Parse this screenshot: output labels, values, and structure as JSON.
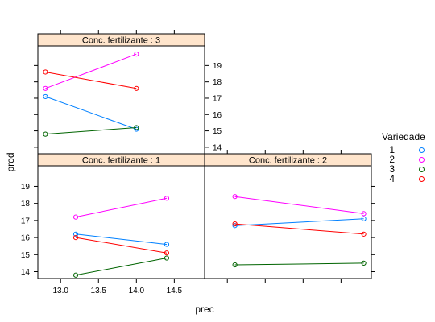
{
  "chart_data": {
    "type": "line",
    "xlabel": "prec",
    "ylabel": "prod",
    "xlim": [
      12.7,
      14.9
    ],
    "ylim": [
      13.6,
      20.2
    ],
    "x_ticks": [
      "13.0",
      "13.5",
      "14.0",
      "14.5"
    ],
    "y_ticks": [
      "14",
      "15",
      "16",
      "17",
      "18",
      "19"
    ],
    "legend": {
      "title": "Variedade",
      "labels": [
        "1",
        "2",
        "3",
        "4"
      ],
      "colors": [
        "#0080ff",
        "#ff00ff",
        "#006400",
        "#ff0000"
      ]
    },
    "strip_color": "#ffe5cc",
    "panels": [
      {
        "strip": "Conc. fertilizante : 3",
        "series": [
          {
            "name": "1",
            "x": [
              12.8,
              14.0
            ],
            "y": [
              17.1,
              15.1
            ]
          },
          {
            "name": "2",
            "x": [
              12.8,
              14.0
            ],
            "y": [
              17.6,
              19.7
            ]
          },
          {
            "name": "3",
            "x": [
              12.8,
              14.0
            ],
            "y": [
              14.8,
              15.2
            ]
          },
          {
            "name": "4",
            "x": [
              12.8,
              14.0
            ],
            "y": [
              18.6,
              17.6
            ]
          }
        ]
      },
      {
        "strip": "Conc. fertilizante : 1",
        "series": [
          {
            "name": "1",
            "x": [
              13.2,
              14.4
            ],
            "y": [
              16.2,
              15.6
            ]
          },
          {
            "name": "2",
            "x": [
              13.2,
              14.4
            ],
            "y": [
              17.2,
              18.3
            ]
          },
          {
            "name": "3",
            "x": [
              13.2,
              14.4
            ],
            "y": [
              13.8,
              14.8
            ]
          },
          {
            "name": "4",
            "x": [
              13.2,
              14.4
            ],
            "y": [
              16.0,
              15.1
            ]
          }
        ]
      },
      {
        "strip": "Conc. fertilizante : 2",
        "series": [
          {
            "name": "1",
            "x": [
              13.1,
              14.8
            ],
            "y": [
              16.7,
              17.1
            ]
          },
          {
            "name": "2",
            "x": [
              13.1,
              14.8
            ],
            "y": [
              18.4,
              17.4
            ]
          },
          {
            "name": "3",
            "x": [
              13.1,
              14.8
            ],
            "y": [
              14.4,
              14.5
            ]
          },
          {
            "name": "4",
            "x": [
              13.1,
              14.8
            ],
            "y": [
              16.8,
              16.2
            ]
          }
        ]
      }
    ]
  }
}
